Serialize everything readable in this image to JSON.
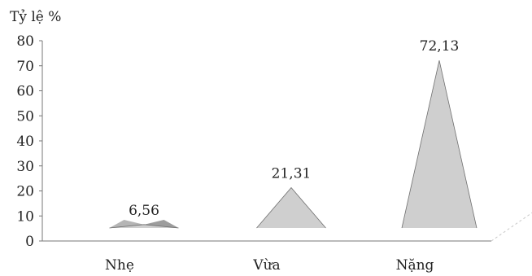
{
  "chart_data": {
    "type": "bar",
    "ylabel": "Tỷ lệ %",
    "categories": [
      "Nhẹ",
      "Vừa",
      "Nặng"
    ],
    "values": [
      6.56,
      21.31,
      72.13
    ],
    "value_labels": [
      "6,56",
      "21,31",
      "72,13"
    ],
    "ylim": [
      0,
      80
    ],
    "yticks": [
      0,
      10,
      20,
      30,
      40,
      50,
      60,
      70,
      80
    ],
    "grid": false,
    "legend": "none",
    "colors": {
      "front": "#cfcfcf",
      "side": "#9d9d9d",
      "edge": "#6f6f6f"
    }
  }
}
